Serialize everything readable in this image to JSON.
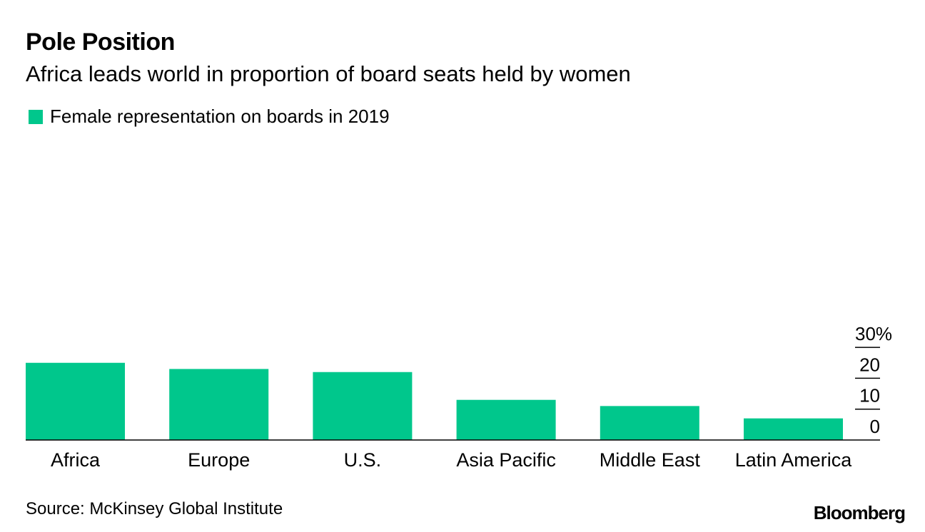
{
  "header": {
    "title": "Pole Position",
    "subtitle": "Africa leads world in proportion of board seats held by women"
  },
  "legend": {
    "label": "Female representation on boards in 2019",
    "color": "#00c78c"
  },
  "footer": {
    "source": "Source: McKinsey Global Institute",
    "brand": "Bloomberg"
  },
  "chart_data": {
    "type": "bar",
    "title": "Pole Position",
    "subtitle": "Africa leads world in proportion of board seats held by women",
    "categories": [
      "Africa",
      "Europe",
      "U.S.",
      "Asia Pacific",
      "Middle East",
      "Latin America"
    ],
    "series": [
      {
        "name": "Female representation on boards in 2019",
        "values": [
          25,
          23,
          22,
          13,
          11,
          7
        ],
        "color": "#00c78c"
      }
    ],
    "ylim": [
      0,
      30
    ],
    "yticks": [
      0,
      10,
      20,
      30
    ],
    "ytick_labels": [
      "0",
      "10",
      "20",
      "30%"
    ],
    "axis_side": "right",
    "xlabel": "",
    "ylabel": ""
  }
}
